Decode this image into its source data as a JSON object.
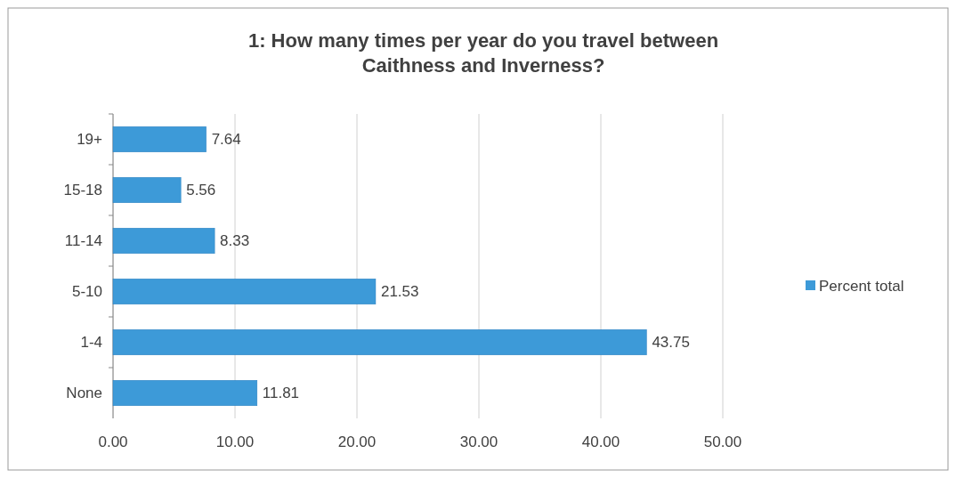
{
  "chart_data": {
    "type": "bar",
    "orientation": "horizontal",
    "title": "1: How many times per year do you travel between Caithness and Inverness?",
    "categories": [
      "19+",
      "15-18",
      "11-14",
      "5-10",
      "1-4",
      "None"
    ],
    "series": [
      {
        "name": "Percent total",
        "color": "#3d9ad8",
        "values": [
          7.64,
          5.56,
          8.33,
          21.53,
          43.75,
          11.81
        ]
      }
    ],
    "xlim": [
      0,
      50
    ],
    "xticks": [
      {
        "value": 0,
        "label": "0.00"
      },
      {
        "value": 10,
        "label": "10.00"
      },
      {
        "value": 20,
        "label": "20.00"
      },
      {
        "value": 30,
        "label": "30.00"
      },
      {
        "value": 40,
        "label": "40.00"
      },
      {
        "value": 50,
        "label": "50.00"
      }
    ],
    "grid": "x",
    "legend": "right",
    "data_labels": true
  }
}
